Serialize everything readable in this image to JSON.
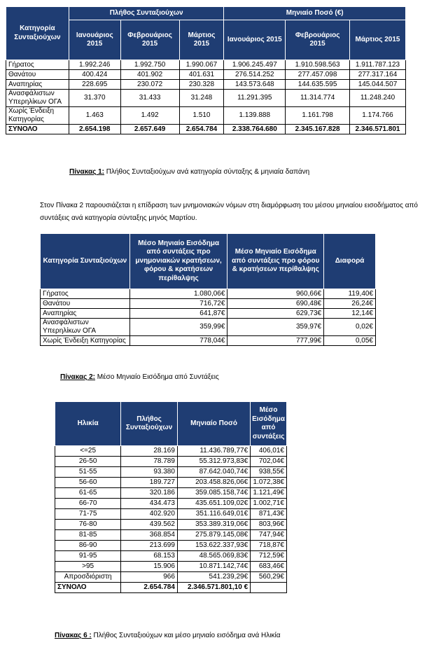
{
  "table1": {
    "category_header": "Κατηγορία Συνταξιούχων",
    "group_headers": [
      "Πλήθος Συνταξιούχων",
      "Μηνιαίο Ποσό (€)"
    ],
    "months": [
      "Ιανουάριος 2015",
      "Φεβρουάριος 2015",
      "Μάρτιος 2015",
      "Ιανουάριος 2015",
      "Φεβρουάριος 2015",
      "Μάρτιος 2015"
    ],
    "rows": [
      {
        "label": "Γήρατος",
        "values": [
          "1.992.246",
          "1.992.750",
          "1.990.067",
          "1.906.245.497",
          "1.910.598.563",
          "1.911.787.123"
        ]
      },
      {
        "label": "Θανάτου",
        "values": [
          "400.424",
          "401.902",
          "401.631",
          "276.514.252",
          "277.457.098",
          "277.317.164"
        ]
      },
      {
        "label": "Αναπηρίας",
        "values": [
          "228.695",
          "230.072",
          "230.328",
          "143.573.648",
          "144.635.595",
          "145.044.507"
        ]
      },
      {
        "label": "Ανασφάλιστων Υπερηλίκων ΟΓΑ",
        "values": [
          "31.370",
          "31.433",
          "31.248",
          "11.291.395",
          "11.314.774",
          "11.248.240"
        ]
      },
      {
        "label": "Χωρίς Ένδειξη Κατηγορίας",
        "values": [
          "1.463",
          "1.492",
          "1.510",
          "1.139.888",
          "1.161.798",
          "1.174.766"
        ]
      }
    ],
    "total": {
      "label": "ΣΥΝΟΛΟ",
      "values": [
        "2.654.198",
        "2.657.649",
        "2.654.784",
        "2.338.764.680",
        "2.345.167.828",
        "2.346.571.801"
      ]
    },
    "caption_label": "Πίνακας 1:",
    "caption_text": " Πλήθος Συνταξιούχων ανά κατηγορία σύνταξης & μηνιαία δαπάνη"
  },
  "paragraph": "Στον Πίνακα 2 παρουσιάζεται η επίδραση των μνημονιακών νόμων στη διαμόρφωση του μέσου μηνιαίου εισοδήματος από συντάξεις ανά κατηγορία σύνταξης μηνός Μαρτίου.",
  "table2": {
    "headers": [
      "Κατηγορία Συνταξιούχων",
      "Μέσο Μηνιαίο Εισόδημα από συντάξεις προ μνημονιακών κρατήσεων, φόρου & κρατήσεων περίθαλψης",
      "Μέσο Μηνιαίο Εισόδημα από συντάξεις προ φόρου & κρατήσεων περίθαλψης",
      "Διαφορά"
    ],
    "rows": [
      {
        "label": "Γήρατος",
        "values": [
          "1.080,06€",
          "960,66€",
          "119,40€"
        ]
      },
      {
        "label": "Θανάτου",
        "values": [
          "716,72€",
          "690,48€",
          "26,24€"
        ]
      },
      {
        "label": "Αναπηρίας",
        "values": [
          "641,87€",
          "629,73€",
          "12,14€"
        ]
      },
      {
        "label": "Ανασφάλιστων Υπερηλίκων ΟΓΑ",
        "values": [
          "359,99€",
          "359,97€",
          "0,02€"
        ]
      },
      {
        "label": "Χωρίς Ένδειξη Κατηγορίας",
        "values": [
          "778,04€",
          "777,99€",
          "0,05€"
        ]
      }
    ],
    "caption_label": "Πίνακας 2:",
    "caption_text": " Μέσο Μηνιαίο Εισόδημα από Συντάξεις"
  },
  "table3": {
    "headers": [
      "Ηλικία",
      "Πλήθος Συνταξιούχων",
      "Μηνιαίο Ποσό",
      "Μέσο Εισόδημα από συντάξεις"
    ],
    "rows": [
      {
        "label": "<=25",
        "values": [
          "28.169",
          "11.436.789,77€",
          "406,01€"
        ]
      },
      {
        "label": "26-50",
        "values": [
          "78.789",
          "55.312.973,83€",
          "702,04€"
        ]
      },
      {
        "label": "51-55",
        "values": [
          "93.380",
          "87.642.040,74€",
          "938,55€"
        ]
      },
      {
        "label": "56-60",
        "values": [
          "189.727",
          "203.458.826,06€",
          "1.072,38€"
        ]
      },
      {
        "label": "61-65",
        "values": [
          "320.186",
          "359.085.158,74€",
          "1.121,49€"
        ]
      },
      {
        "label": "66-70",
        "values": [
          "434.473",
          "435.651.109,02€",
          "1.002,71€"
        ]
      },
      {
        "label": "71-75",
        "values": [
          "402.920",
          "351.116.649,01€",
          "871,43€"
        ]
      },
      {
        "label": "76-80",
        "values": [
          "439.562",
          "353.389.319,06€",
          "803,96€"
        ]
      },
      {
        "label": "81-85",
        "values": [
          "368.854",
          "275.879.145,08€",
          "747,94€"
        ]
      },
      {
        "label": "86-90",
        "values": [
          "213.699",
          "153.622.337,93€",
          "718,87€"
        ]
      },
      {
        "label": "91-95",
        "values": [
          "68.153",
          "48.565.069,83€",
          "712,59€"
        ]
      },
      {
        "label": ">95",
        "values": [
          "15.906",
          "10.871.142,74€",
          "683,46€"
        ]
      },
      {
        "label": "Απροσδιόριστη",
        "values": [
          "966",
          "541.239,29€",
          "560,29€"
        ]
      }
    ],
    "total": {
      "label": "ΣΥΝΟΛΟ",
      "values": [
        "2.654.784",
        "2.346.571.801,10 €",
        ""
      ]
    },
    "caption_label": "Πίνακας 6 :",
    "caption_text": " Πλήθος Συνταξιούχων και μέσο μηνιαίο εισόδημα ανά Ηλικία"
  },
  "colors": {
    "header_bg": "#1f3d73",
    "header_text": "#ffffff"
  }
}
